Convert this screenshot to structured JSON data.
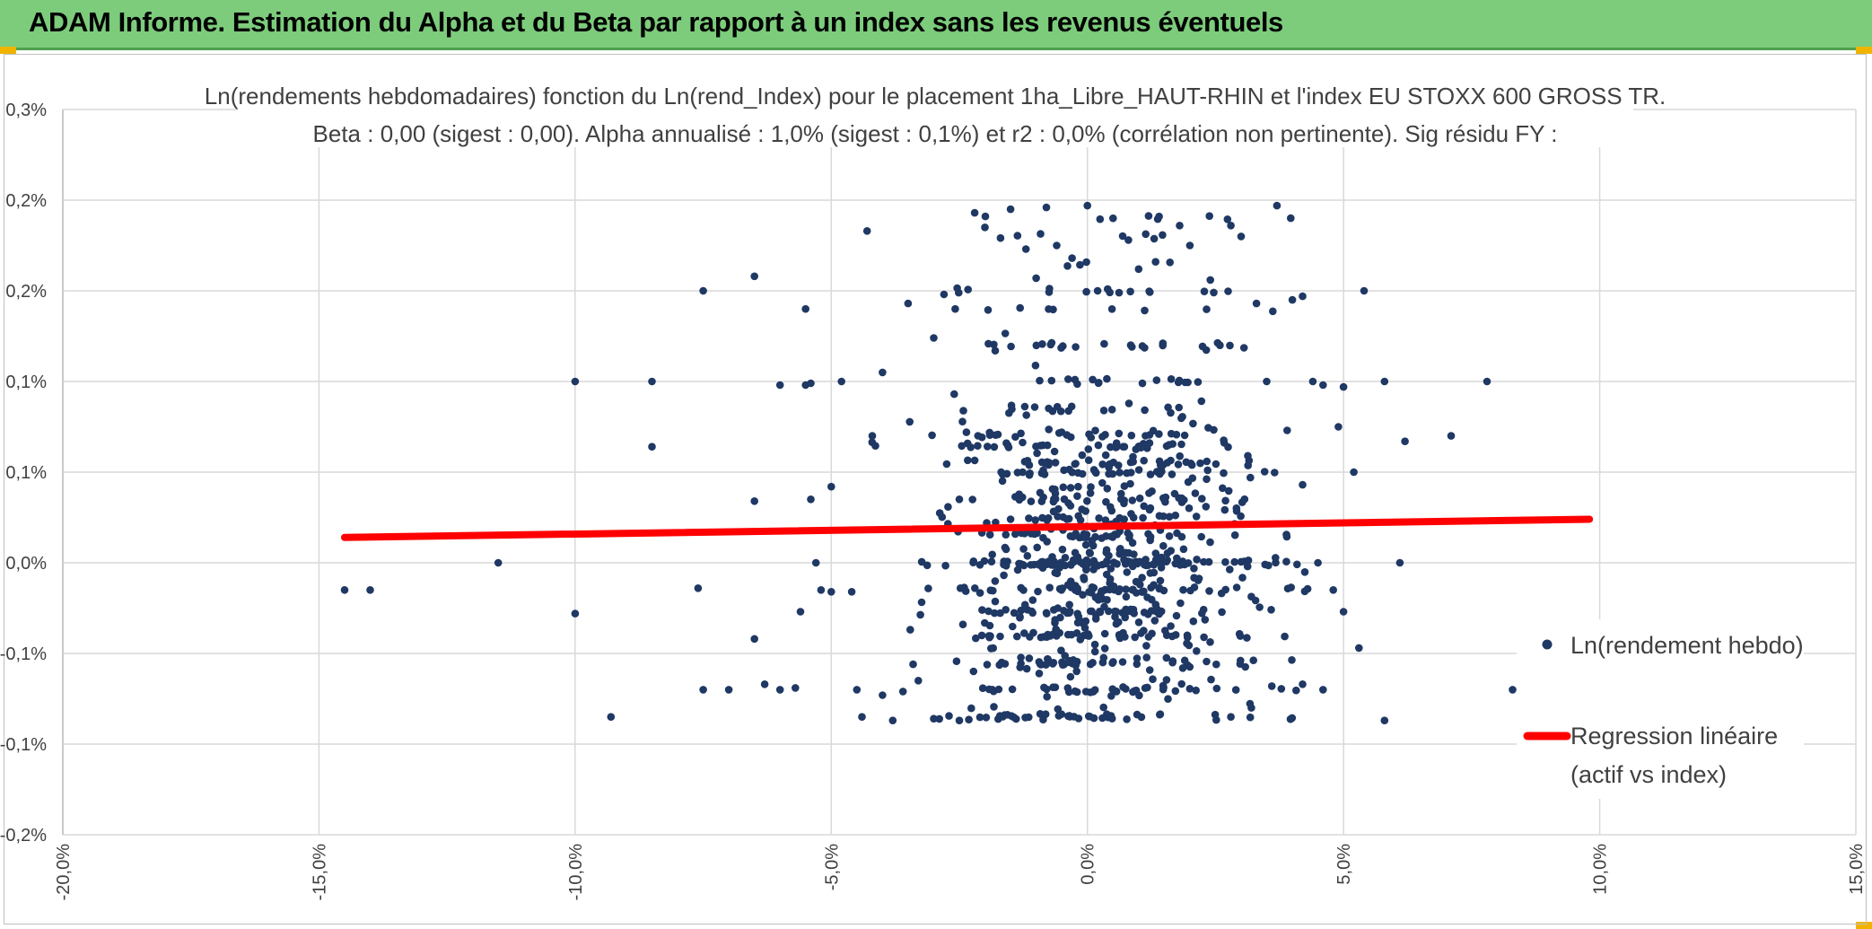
{
  "header": {
    "title": "ADAM Informe. Estimation du Alpha et du Beta par rapport à un index sans les revenus éventuels"
  },
  "colors": {
    "banner": "#7ccc7c",
    "points": "#1f3864",
    "regression": "#ff0000",
    "grid": "#d9d9d9"
  },
  "chart_data": {
    "type": "scatter",
    "title_lines": [
      "Ln(rendements hebdomadaires) fonction du Ln(rend_Index) pour le placement 1ha_Libre_HAUT-RHIN et l'index EU STOXX 600 GROSS TR.",
      "Beta : 0,00 (sigest : 0,00). Alpha annualisé : 1,0% (sigest : 0,1%) et r2 : 0,0% (corrélation non pertinente). Sig résidu FY :"
    ],
    "x_range": [
      -20,
      15
    ],
    "y_range": [
      -0.15,
      0.25
    ],
    "x_tick_values": [
      -20,
      -15,
      -10,
      -5,
      0,
      5,
      10,
      15
    ],
    "x_tick_labels": [
      "-20,0%",
      "-15,0%",
      "-10,0%",
      "-5,0%",
      "0,0%",
      "5,0%",
      "10,0%",
      "15,0%"
    ],
    "y_tick_values": [
      -0.15,
      -0.1,
      -0.05,
      0,
      0.05,
      0.1,
      0.15,
      0.2,
      0.25
    ],
    "y_tick_labels": [
      "-0,2%",
      "-0,1%",
      "-0,1%",
      "0,0%",
      "0,1%",
      "0,1%",
      "0,2%",
      "0,2%",
      "0,3%"
    ],
    "grid": true,
    "legend_position": "right",
    "series": [
      {
        "name": "Ln(rendement hebdo)",
        "kind": "points",
        "points": [
          [
            -14.5,
            -0.015
          ],
          [
            -14.0,
            -0.015
          ],
          [
            -11.5,
            0.0
          ],
          [
            -10.0,
            0.1
          ],
          [
            -10.0,
            -0.028
          ],
          [
            -9.3,
            -0.085
          ],
          [
            -8.5,
            0.1
          ],
          [
            -8.5,
            0.064
          ],
          [
            -7.5,
            0.15
          ],
          [
            -7.5,
            -0.07
          ],
          [
            -7.6,
            -0.014
          ],
          [
            -7.0,
            -0.07
          ],
          [
            -6.5,
            0.158
          ],
          [
            -6.5,
            0.034
          ],
          [
            -6.5,
            -0.042
          ],
          [
            -6.3,
            -0.067
          ],
          [
            -6.0,
            -0.07
          ],
          [
            -6.0,
            0.098
          ],
          [
            -5.7,
            -0.069
          ],
          [
            -5.5,
            0.14
          ],
          [
            -5.5,
            0.098
          ],
          [
            -5.4,
            0.099
          ],
          [
            -5.4,
            0.035
          ],
          [
            -5.3,
            0.0
          ],
          [
            -5.2,
            -0.015
          ],
          [
            -5.0,
            0.042
          ],
          [
            -5.0,
            -0.016
          ],
          [
            -5.6,
            -0.027
          ],
          [
            -4.8,
            0.1
          ],
          [
            -4.6,
            -0.016
          ],
          [
            -4.5,
            -0.07
          ],
          [
            -4.3,
            0.183
          ],
          [
            -4.2,
            0.07
          ],
          [
            -4.0,
            0.105
          ],
          [
            -4.0,
            -0.073
          ],
          [
            -3.8,
            -0.087
          ],
          [
            -3.6,
            -0.071
          ],
          [
            -3.5,
            0.143
          ],
          [
            -3.3,
            -0.065
          ],
          [
            -3.0,
            0.124
          ],
          [
            -2.8,
            0.148
          ],
          [
            -2.6,
            0.093
          ],
          [
            -2.5,
            0.035
          ],
          [
            -2.2,
            0.193
          ],
          [
            -2.0,
            0.185
          ],
          [
            -1.8,
            0.117
          ],
          [
            -1.5,
            0.195
          ],
          [
            -1.2,
            0.173
          ],
          [
            -1.0,
            0.157
          ],
          [
            -0.8,
            0.196
          ],
          [
            -0.6,
            0.175
          ],
          [
            -0.3,
            0.168
          ],
          [
            0.0,
            0.197
          ],
          [
            0.2,
            0.15
          ],
          [
            0.5,
            0.19
          ],
          [
            0.8,
            0.178
          ],
          [
            1.0,
            0.162
          ],
          [
            1.4,
            0.191
          ],
          [
            1.8,
            0.186
          ],
          [
            2.0,
            0.175
          ],
          [
            2.4,
            0.156
          ],
          [
            2.8,
            0.186
          ],
          [
            3.0,
            0.18
          ],
          [
            3.3,
            0.143
          ],
          [
            3.7,
            0.197
          ],
          [
            4.0,
            0.145
          ],
          [
            4.2,
            0.147
          ],
          [
            4.4,
            0.1
          ],
          [
            4.6,
            0.098
          ],
          [
            4.9,
            0.075
          ],
          [
            5.0,
            0.097
          ],
          [
            5.2,
            0.05
          ],
          [
            5.4,
            0.15
          ],
          [
            5.8,
            0.1
          ],
          [
            6.2,
            0.067
          ],
          [
            7.1,
            0.07
          ],
          [
            7.8,
            0.1
          ],
          [
            3.5,
            0.1
          ],
          [
            3.9,
            0.073
          ],
          [
            4.2,
            0.043
          ],
          [
            4.5,
            0.0
          ],
          [
            4.8,
            -0.015
          ],
          [
            5.0,
            -0.027
          ],
          [
            5.3,
            -0.047
          ],
          [
            6.1,
            0.0
          ],
          [
            8.3,
            -0.07
          ],
          [
            9.8,
            -0.07
          ],
          [
            5.8,
            -0.087
          ],
          [
            4.6,
            -0.07
          ],
          [
            4.2,
            -0.067
          ],
          [
            3.6,
            -0.068
          ],
          [
            3.2,
            -0.08
          ],
          [
            2.8,
            -0.085
          ],
          [
            -2.5,
            -0.087
          ],
          [
            -3.0,
            -0.086
          ],
          [
            -4.4,
            -0.085
          ]
        ],
        "distribution": {
          "count": 950,
          "x_mean": 0.3,
          "x_sd": 1.55,
          "y_min": -0.087,
          "y_max": 0.197,
          "y_center": 0.0,
          "y_bands": [
            -0.085,
            -0.07,
            -0.055,
            -0.04,
            -0.027,
            -0.015,
            0.0,
            0.015,
            0.025,
            0.035,
            0.05,
            0.055,
            0.065,
            0.07,
            0.085,
            0.1,
            0.12,
            0.14,
            0.15,
            0.165,
            0.18,
            0.19
          ]
        }
      },
      {
        "name": "Regression linéaire\n(actif vs index)",
        "kind": "line",
        "points": [
          [
            -14.5,
            0.014
          ],
          [
            9.8,
            0.024
          ]
        ]
      }
    ],
    "legend": {
      "items": [
        "Ln(rendement hebdo)",
        "Regression linéaire",
        "(actif vs index)"
      ]
    }
  }
}
